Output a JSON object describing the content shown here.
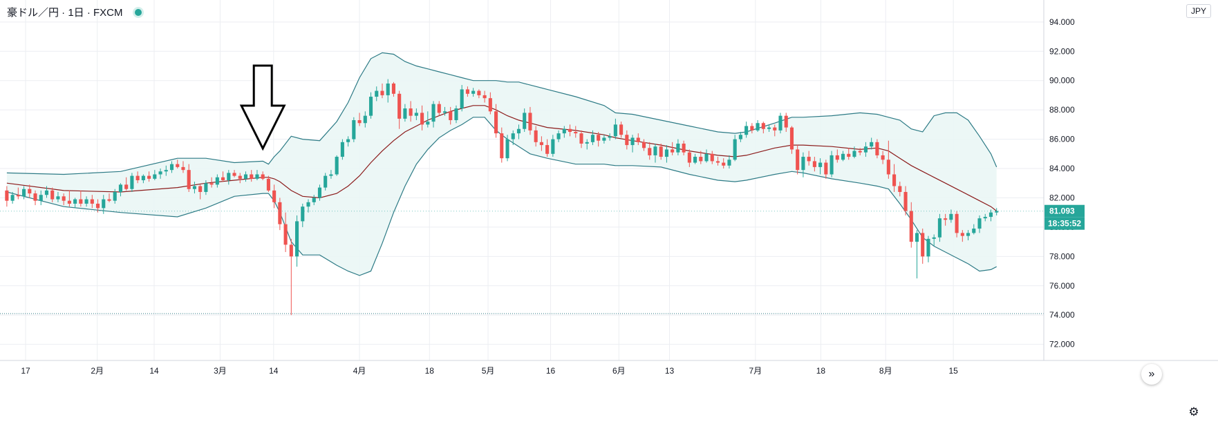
{
  "legend": {
    "title": "豪ドル／円 · 1日 · FXCM"
  },
  "currency": "JPY",
  "colors": {
    "up": "#26a69a",
    "down": "#ef5350",
    "band_line": "#2c7a85",
    "basis": "#8b1a1a",
    "band_fill": "#eaf6f5",
    "grid": "#eceef2"
  },
  "chart_data": {
    "type": "candlestick",
    "title": "豪ドル／円 · 1日 · FXCM",
    "ylabel": "JPY",
    "ylim": [
      70.9,
      95.5
    ],
    "xlim": [
      -1.2,
      182.3
    ],
    "y_ticks": [
      "94.000",
      "92.000",
      "90.000",
      "88.000",
      "86.000",
      "84.000",
      "82.000",
      "80.000",
      "78.000",
      "76.000",
      "74.000",
      "72.000"
    ],
    "x_ticks": [
      {
        "label": "17",
        "x": 3.3
      },
      {
        "label": "2月",
        "x": 15.9
      },
      {
        "label": "14",
        "x": 25.9
      },
      {
        "label": "3月",
        "x": 37.5
      },
      {
        "label": "14",
        "x": 46.9
      },
      {
        "label": "4月",
        "x": 62
      },
      {
        "label": "18",
        "x": 74.3
      },
      {
        "label": "5月",
        "x": 84.6
      },
      {
        "label": "16",
        "x": 95.6
      },
      {
        "label": "6月",
        "x": 107.6
      },
      {
        "label": "13",
        "x": 116.5
      },
      {
        "label": "7月",
        "x": 131.6
      },
      {
        "label": "18",
        "x": 143.1
      },
      {
        "label": "8月",
        "x": 154.5
      },
      {
        "label": "15",
        "x": 166.4
      }
    ],
    "candles": [
      [
        0,
        82.5,
        82.8,
        81.4,
        81.8
      ],
      [
        1,
        81.8,
        82.4,
        81.6,
        82.2
      ],
      [
        2,
        82.2,
        82.7,
        81.9,
        82.1
      ],
      [
        3,
        82.1,
        82.8,
        81.9,
        82.6
      ],
      [
        4,
        82.6,
        82.9,
        82.0,
        82.3
      ],
      [
        5,
        82.3,
        82.5,
        81.5,
        81.8
      ],
      [
        6,
        81.8,
        82.5,
        81.5,
        82.2
      ],
      [
        7,
        82.2,
        82.8,
        82.0,
        82.5
      ],
      [
        8,
        82.5,
        82.7,
        81.7,
        81.9
      ],
      [
        9,
        81.9,
        82.4,
        81.7,
        82.1
      ],
      [
        10,
        82.1,
        82.3,
        81.5,
        81.8
      ],
      [
        11,
        81.8,
        82.5,
        81.4,
        81.6
      ],
      [
        12,
        81.6,
        82.0,
        81.3,
        81.9
      ],
      [
        13,
        81.9,
        82.5,
        81.4,
        81.6
      ],
      [
        14,
        81.6,
        82.1,
        81.4,
        81.9
      ],
      [
        15,
        81.9,
        82.2,
        81.3,
        81.6
      ],
      [
        16,
        81.6,
        81.9,
        81.0,
        81.3
      ],
      [
        17,
        81.3,
        82.2,
        80.9,
        81.9
      ],
      [
        18,
        81.9,
        82.3,
        81.7,
        81.8
      ],
      [
        19,
        81.8,
        82.6,
        81.6,
        82.4
      ],
      [
        20,
        82.4,
        83.0,
        82.1,
        82.9
      ],
      [
        21,
        82.9,
        83.4,
        82.5,
        82.6
      ],
      [
        22,
        82.6,
        83.7,
        82.4,
        83.5
      ],
      [
        23,
        83.5,
        83.8,
        83.0,
        83.2
      ],
      [
        24,
        83.2,
        83.6,
        83.0,
        83.5
      ],
      [
        25,
        83.5,
        83.8,
        83.1,
        83.3
      ],
      [
        26,
        83.3,
        83.9,
        83.2,
        83.6
      ],
      [
        27,
        83.6,
        84.0,
        83.3,
        83.8
      ],
      [
        28,
        83.8,
        84.2,
        83.5,
        83.9
      ],
      [
        29,
        83.9,
        84.5,
        83.7,
        84.3
      ],
      [
        30,
        84.3,
        84.6,
        84.0,
        84.1
      ],
      [
        31,
        84.1,
        84.5,
        83.7,
        83.9
      ],
      [
        32,
        83.9,
        84.3,
        82.4,
        82.6
      ],
      [
        33,
        82.6,
        83.1,
        82.3,
        82.8
      ],
      [
        34,
        82.8,
        82.9,
        81.9,
        82.4
      ],
      [
        35,
        82.4,
        83.2,
        82.2,
        83.0
      ],
      [
        36,
        83.0,
        83.4,
        82.7,
        82.9
      ],
      [
        37,
        82.9,
        83.6,
        82.7,
        83.4
      ],
      [
        38,
        83.4,
        83.8,
        83.1,
        83.2
      ],
      [
        39,
        83.2,
        83.9,
        82.9,
        83.7
      ],
      [
        40,
        83.7,
        83.9,
        83.4,
        83.5
      ],
      [
        41,
        83.5,
        83.7,
        83.0,
        83.3
      ],
      [
        42,
        83.3,
        83.8,
        83.1,
        83.6
      ],
      [
        43,
        83.6,
        83.9,
        83.1,
        83.3
      ],
      [
        44,
        83.3,
        83.9,
        83.2,
        83.6
      ],
      [
        45,
        83.6,
        83.8,
        83.2,
        83.3
      ],
      [
        46,
        83.3,
        83.5,
        82.4,
        82.5
      ],
      [
        47,
        82.5,
        82.9,
        81.3,
        81.7
      ],
      [
        48,
        81.7,
        82.0,
        79.8,
        80.2
      ],
      [
        49,
        80.2,
        81.0,
        78.3,
        78.8
      ],
      [
        50,
        78.8,
        79.2,
        74.0,
        78.0
      ],
      [
        51,
        78.0,
        80.8,
        77.3,
        80.4
      ],
      [
        52,
        80.4,
        81.6,
        80.0,
        81.4
      ],
      [
        53,
        81.4,
        81.9,
        81.0,
        81.7
      ],
      [
        54,
        81.7,
        82.2,
        81.5,
        82.0
      ],
      [
        55,
        82.0,
        82.9,
        81.8,
        82.7
      ],
      [
        56,
        82.7,
        83.7,
        82.5,
        83.5
      ],
      [
        57,
        83.5,
        83.9,
        83.3,
        83.6
      ],
      [
        58,
        83.6,
        84.9,
        83.5,
        84.8
      ],
      [
        59,
        84.8,
        86.0,
        84.6,
        85.8
      ],
      [
        60,
        85.8,
        86.2,
        85.5,
        86.0
      ],
      [
        61,
        86.0,
        87.5,
        85.8,
        87.3
      ],
      [
        62,
        87.3,
        87.8,
        86.9,
        87.1
      ],
      [
        63,
        87.1,
        87.9,
        86.8,
        87.6
      ],
      [
        64,
        87.6,
        89.2,
        87.4,
        88.9
      ],
      [
        65,
        88.9,
        89.6,
        88.6,
        89.3
      ],
      [
        66,
        89.3,
        89.8,
        88.8,
        89.0
      ],
      [
        67,
        89.0,
        90.1,
        88.5,
        89.8
      ],
      [
        68,
        89.8,
        89.9,
        88.9,
        89.1
      ],
      [
        69,
        89.1,
        89.3,
        86.7,
        87.4
      ],
      [
        70,
        87.4,
        88.4,
        87.2,
        88.1
      ],
      [
        71,
        88.1,
        88.6,
        87.2,
        87.6
      ],
      [
        72,
        87.6,
        88.1,
        87.3,
        87.8
      ],
      [
        73,
        87.8,
        88.3,
        86.6,
        87.0
      ],
      [
        74,
        87.0,
        87.9,
        86.8,
        87.2
      ],
      [
        75,
        87.2,
        88.6,
        86.8,
        88.4
      ],
      [
        76,
        88.4,
        88.6,
        87.6,
        87.8
      ],
      [
        77,
        87.8,
        88.2,
        87.6,
        87.9
      ],
      [
        78,
        87.9,
        88.2,
        87.0,
        87.3
      ],
      [
        79,
        87.3,
        88.3,
        87.1,
        88.1
      ],
      [
        80,
        88.1,
        89.7,
        87.9,
        89.4
      ],
      [
        81,
        89.4,
        89.6,
        88.9,
        89.1
      ],
      [
        82,
        89.1,
        89.5,
        88.9,
        89.3
      ],
      [
        83,
        89.3,
        89.4,
        88.8,
        89.0
      ],
      [
        84,
        89.0,
        89.3,
        88.5,
        88.8
      ],
      [
        85,
        88.8,
        89.2,
        87.7,
        87.9
      ],
      [
        86,
        87.9,
        88.4,
        86.1,
        86.4
      ],
      [
        87,
        86.4,
        86.8,
        84.4,
        84.7
      ],
      [
        88,
        84.7,
        86.3,
        84.5,
        86.0
      ],
      [
        89,
        86.0,
        86.6,
        85.6,
        86.4
      ],
      [
        90,
        86.4,
        87.0,
        86.0,
        86.7
      ],
      [
        91,
        86.7,
        88.1,
        86.5,
        87.8
      ],
      [
        92,
        87.8,
        88.2,
        86.3,
        86.6
      ],
      [
        93,
        86.6,
        86.9,
        85.5,
        85.8
      ],
      [
        94,
        85.8,
        86.2,
        85.2,
        85.6
      ],
      [
        95,
        85.6,
        86.0,
        84.8,
        85.0
      ],
      [
        96,
        85.0,
        86.3,
        84.8,
        86.0
      ],
      [
        97,
        86.0,
        86.6,
        85.8,
        86.4
      ],
      [
        98,
        86.4,
        86.9,
        86.1,
        86.7
      ],
      [
        99,
        86.7,
        87.0,
        86.2,
        86.5
      ],
      [
        100,
        86.5,
        86.9,
        86.1,
        86.4
      ],
      [
        101,
        86.4,
        86.6,
        85.4,
        85.7
      ],
      [
        102,
        85.7,
        86.0,
        85.3,
        85.8
      ],
      [
        103,
        85.8,
        86.6,
        85.6,
        86.3
      ],
      [
        104,
        86.3,
        86.5,
        85.5,
        85.9
      ],
      [
        105,
        85.9,
        86.3,
        85.7,
        86.1
      ],
      [
        106,
        86.1,
        86.4,
        85.9,
        86.2
      ],
      [
        107,
        86.2,
        87.4,
        86.0,
        87.0
      ],
      [
        108,
        87.0,
        87.2,
        86.1,
        86.3
      ],
      [
        109,
        86.3,
        86.6,
        85.3,
        85.6
      ],
      [
        110,
        85.6,
        86.3,
        85.1,
        86.1
      ],
      [
        111,
        86.1,
        86.4,
        85.6,
        85.8
      ],
      [
        112,
        85.8,
        86.0,
        85.2,
        85.4
      ],
      [
        113,
        85.4,
        85.8,
        84.6,
        84.9
      ],
      [
        114,
        84.9,
        85.7,
        84.4,
        85.5
      ],
      [
        115,
        85.5,
        85.7,
        84.6,
        84.8
      ],
      [
        116,
        84.8,
        85.6,
        84.4,
        85.3
      ],
      [
        117,
        85.3,
        85.8,
        84.9,
        85.1
      ],
      [
        118,
        85.1,
        86.0,
        84.9,
        85.7
      ],
      [
        119,
        85.7,
        85.9,
        84.9,
        85.1
      ],
      [
        120,
        85.1,
        85.3,
        84.1,
        84.4
      ],
      [
        121,
        84.4,
        85.0,
        84.3,
        84.8
      ],
      [
        122,
        84.8,
        85.2,
        84.3,
        84.5
      ],
      [
        123,
        84.5,
        85.3,
        84.4,
        85.0
      ],
      [
        124,
        85.0,
        85.2,
        84.3,
        84.5
      ],
      [
        125,
        84.5,
        84.8,
        84.2,
        84.4
      ],
      [
        126,
        84.4,
        84.7,
        84.0,
        84.2
      ],
      [
        127,
        84.2,
        84.9,
        84.0,
        84.6
      ],
      [
        128,
        84.6,
        86.3,
        84.5,
        86.0
      ],
      [
        129,
        86.0,
        86.5,
        85.8,
        86.3
      ],
      [
        130,
        86.3,
        87.2,
        86.1,
        86.9
      ],
      [
        131,
        86.9,
        87.1,
        86.4,
        86.6
      ],
      [
        132,
        86.6,
        87.3,
        86.5,
        87.1
      ],
      [
        133,
        87.1,
        87.2,
        86.4,
        86.7
      ],
      [
        134,
        86.7,
        87.0,
        86.5,
        86.8
      ],
      [
        135,
        86.8,
        87.0,
        86.2,
        86.6
      ],
      [
        136,
        86.6,
        87.8,
        86.4,
        87.6
      ],
      [
        137,
        87.6,
        87.8,
        86.5,
        86.8
      ],
      [
        138,
        86.8,
        86.9,
        85.0,
        85.3
      ],
      [
        139,
        85.3,
        85.6,
        83.6,
        83.9
      ],
      [
        140,
        83.9,
        85.1,
        83.4,
        84.8
      ],
      [
        141,
        84.8,
        85.2,
        84.2,
        84.5
      ],
      [
        142,
        84.5,
        84.8,
        83.8,
        84.1
      ],
      [
        143,
        84.1,
        84.7,
        83.6,
        84.4
      ],
      [
        144,
        84.4,
        84.6,
        83.3,
        83.6
      ],
      [
        145,
        83.6,
        85.2,
        83.4,
        84.9
      ],
      [
        146,
        84.9,
        85.3,
        84.4,
        84.6
      ],
      [
        147,
        84.6,
        85.2,
        84.5,
        85.0
      ],
      [
        148,
        85.0,
        85.4,
        84.6,
        84.8
      ],
      [
        149,
        84.8,
        85.5,
        84.7,
        85.2
      ],
      [
        150,
        85.2,
        85.4,
        84.9,
        85.1
      ],
      [
        151,
        85.1,
        85.8,
        84.8,
        85.5
      ],
      [
        152,
        85.5,
        86.1,
        85.3,
        85.8
      ],
      [
        153,
        85.8,
        86.0,
        84.7,
        84.9
      ],
      [
        154,
        84.9,
        85.2,
        84.3,
        84.6
      ],
      [
        155,
        84.6,
        85.9,
        83.3,
        83.6
      ],
      [
        156,
        83.6,
        84.3,
        82.4,
        82.8
      ],
      [
        157,
        82.8,
        83.1,
        82.1,
        82.4
      ],
      [
        158,
        82.4,
        82.8,
        80.8,
        81.1
      ],
      [
        159,
        81.1,
        81.7,
        78.6,
        79.0
      ],
      [
        160,
        79.0,
        79.8,
        76.5,
        79.6
      ],
      [
        161,
        79.6,
        79.9,
        77.5,
        78.0
      ],
      [
        162,
        78.0,
        79.4,
        77.6,
        79.2
      ],
      [
        163,
        79.2,
        79.5,
        78.7,
        79.3
      ],
      [
        164,
        79.3,
        80.9,
        79.0,
        80.6
      ],
      [
        165,
        80.6,
        80.9,
        80.1,
        80.5
      ],
      [
        166,
        80.5,
        81.2,
        80.3,
        80.9
      ],
      [
        167,
        80.9,
        81.1,
        79.3,
        79.6
      ],
      [
        168,
        79.6,
        79.8,
        79.0,
        79.4
      ],
      [
        169,
        79.4,
        79.8,
        79.1,
        79.6
      ],
      [
        170,
        79.6,
        80.2,
        79.5,
        79.9
      ],
      [
        171,
        79.9,
        80.8,
        79.6,
        80.6
      ],
      [
        172,
        80.6,
        80.9,
        80.4,
        80.7
      ],
      [
        173,
        80.7,
        81.2,
        80.4,
        81.0
      ],
      [
        174,
        81.0,
        81.3,
        80.8,
        81.1
      ]
    ],
    "bollinger": {
      "period": 20,
      "multiplier": 2,
      "x": [
        0,
        10,
        20,
        30,
        35,
        40,
        45,
        46,
        47,
        48,
        50,
        52,
        55,
        58,
        60,
        62,
        64,
        66,
        68,
        70,
        72,
        74,
        76,
        78,
        80,
        82,
        84,
        86,
        88,
        90,
        92,
        95,
        100,
        105,
        107,
        110,
        115,
        120,
        125,
        128,
        130,
        135,
        138,
        140,
        145,
        150,
        153,
        155,
        157,
        159,
        161,
        163,
        165,
        167,
        169,
        171,
        173,
        174
      ],
      "upper": [
        83.7,
        83.6,
        83.8,
        84.7,
        84.7,
        84.4,
        84.5,
        84.3,
        84.8,
        85.2,
        86.2,
        86.0,
        85.9,
        87.2,
        88.5,
        90.2,
        91.5,
        91.9,
        91.8,
        91.3,
        91.0,
        90.8,
        90.6,
        90.4,
        90.2,
        90.0,
        90.0,
        90.0,
        89.9,
        89.9,
        89.7,
        89.4,
        88.9,
        88.3,
        87.8,
        87.7,
        87.3,
        86.9,
        86.5,
        86.4,
        86.5,
        87.1,
        87.5,
        87.5,
        87.6,
        87.8,
        87.7,
        87.5,
        87.3,
        86.7,
        86.5,
        87.6,
        87.8,
        87.8,
        87.3,
        86.2,
        85.0,
        84.1
      ],
      "basis": [
        83.0,
        82.5,
        82.4,
        82.7,
        83.0,
        83.2,
        83.4,
        83.4,
        83.3,
        83.1,
        82.5,
        82.1,
        82.0,
        82.3,
        82.8,
        83.5,
        84.4,
        85.2,
        85.9,
        86.5,
        86.9,
        87.3,
        87.6,
        87.9,
        88.1,
        88.3,
        88.3,
        88.0,
        87.6,
        87.3,
        87.1,
        86.8,
        86.6,
        86.3,
        86.1,
        85.9,
        85.6,
        85.2,
        84.9,
        84.8,
        84.9,
        85.4,
        85.6,
        85.6,
        85.5,
        85.3,
        85.4,
        85.2,
        84.7,
        84.2,
        83.8,
        83.4,
        83.0,
        82.6,
        82.2,
        81.8,
        81.4,
        81.1
      ],
      "lower": [
        82.4,
        81.4,
        81.0,
        80.7,
        81.3,
        82.1,
        82.3,
        82.3,
        81.8,
        81.0,
        79.0,
        78.1,
        78.1,
        77.4,
        77.0,
        76.7,
        77.0,
        78.9,
        81.0,
        82.8,
        84.3,
        85.3,
        86.1,
        86.6,
        87.0,
        87.5,
        87.5,
        86.6,
        86.0,
        85.5,
        85.0,
        84.7,
        84.3,
        84.3,
        84.2,
        84.2,
        84.1,
        83.6,
        83.2,
        83.1,
        83.2,
        83.6,
        83.8,
        83.7,
        83.3,
        83.0,
        82.8,
        82.6,
        81.6,
        80.5,
        79.3,
        78.7,
        78.3,
        77.9,
        77.5,
        77.0,
        77.1,
        77.3
      ]
    },
    "annotations": {
      "arrow_at_index": 45,
      "dotted_line_value": 74.1
    },
    "last_price": "81.093",
    "countdown": "18:35:52",
    "grid": true
  }
}
